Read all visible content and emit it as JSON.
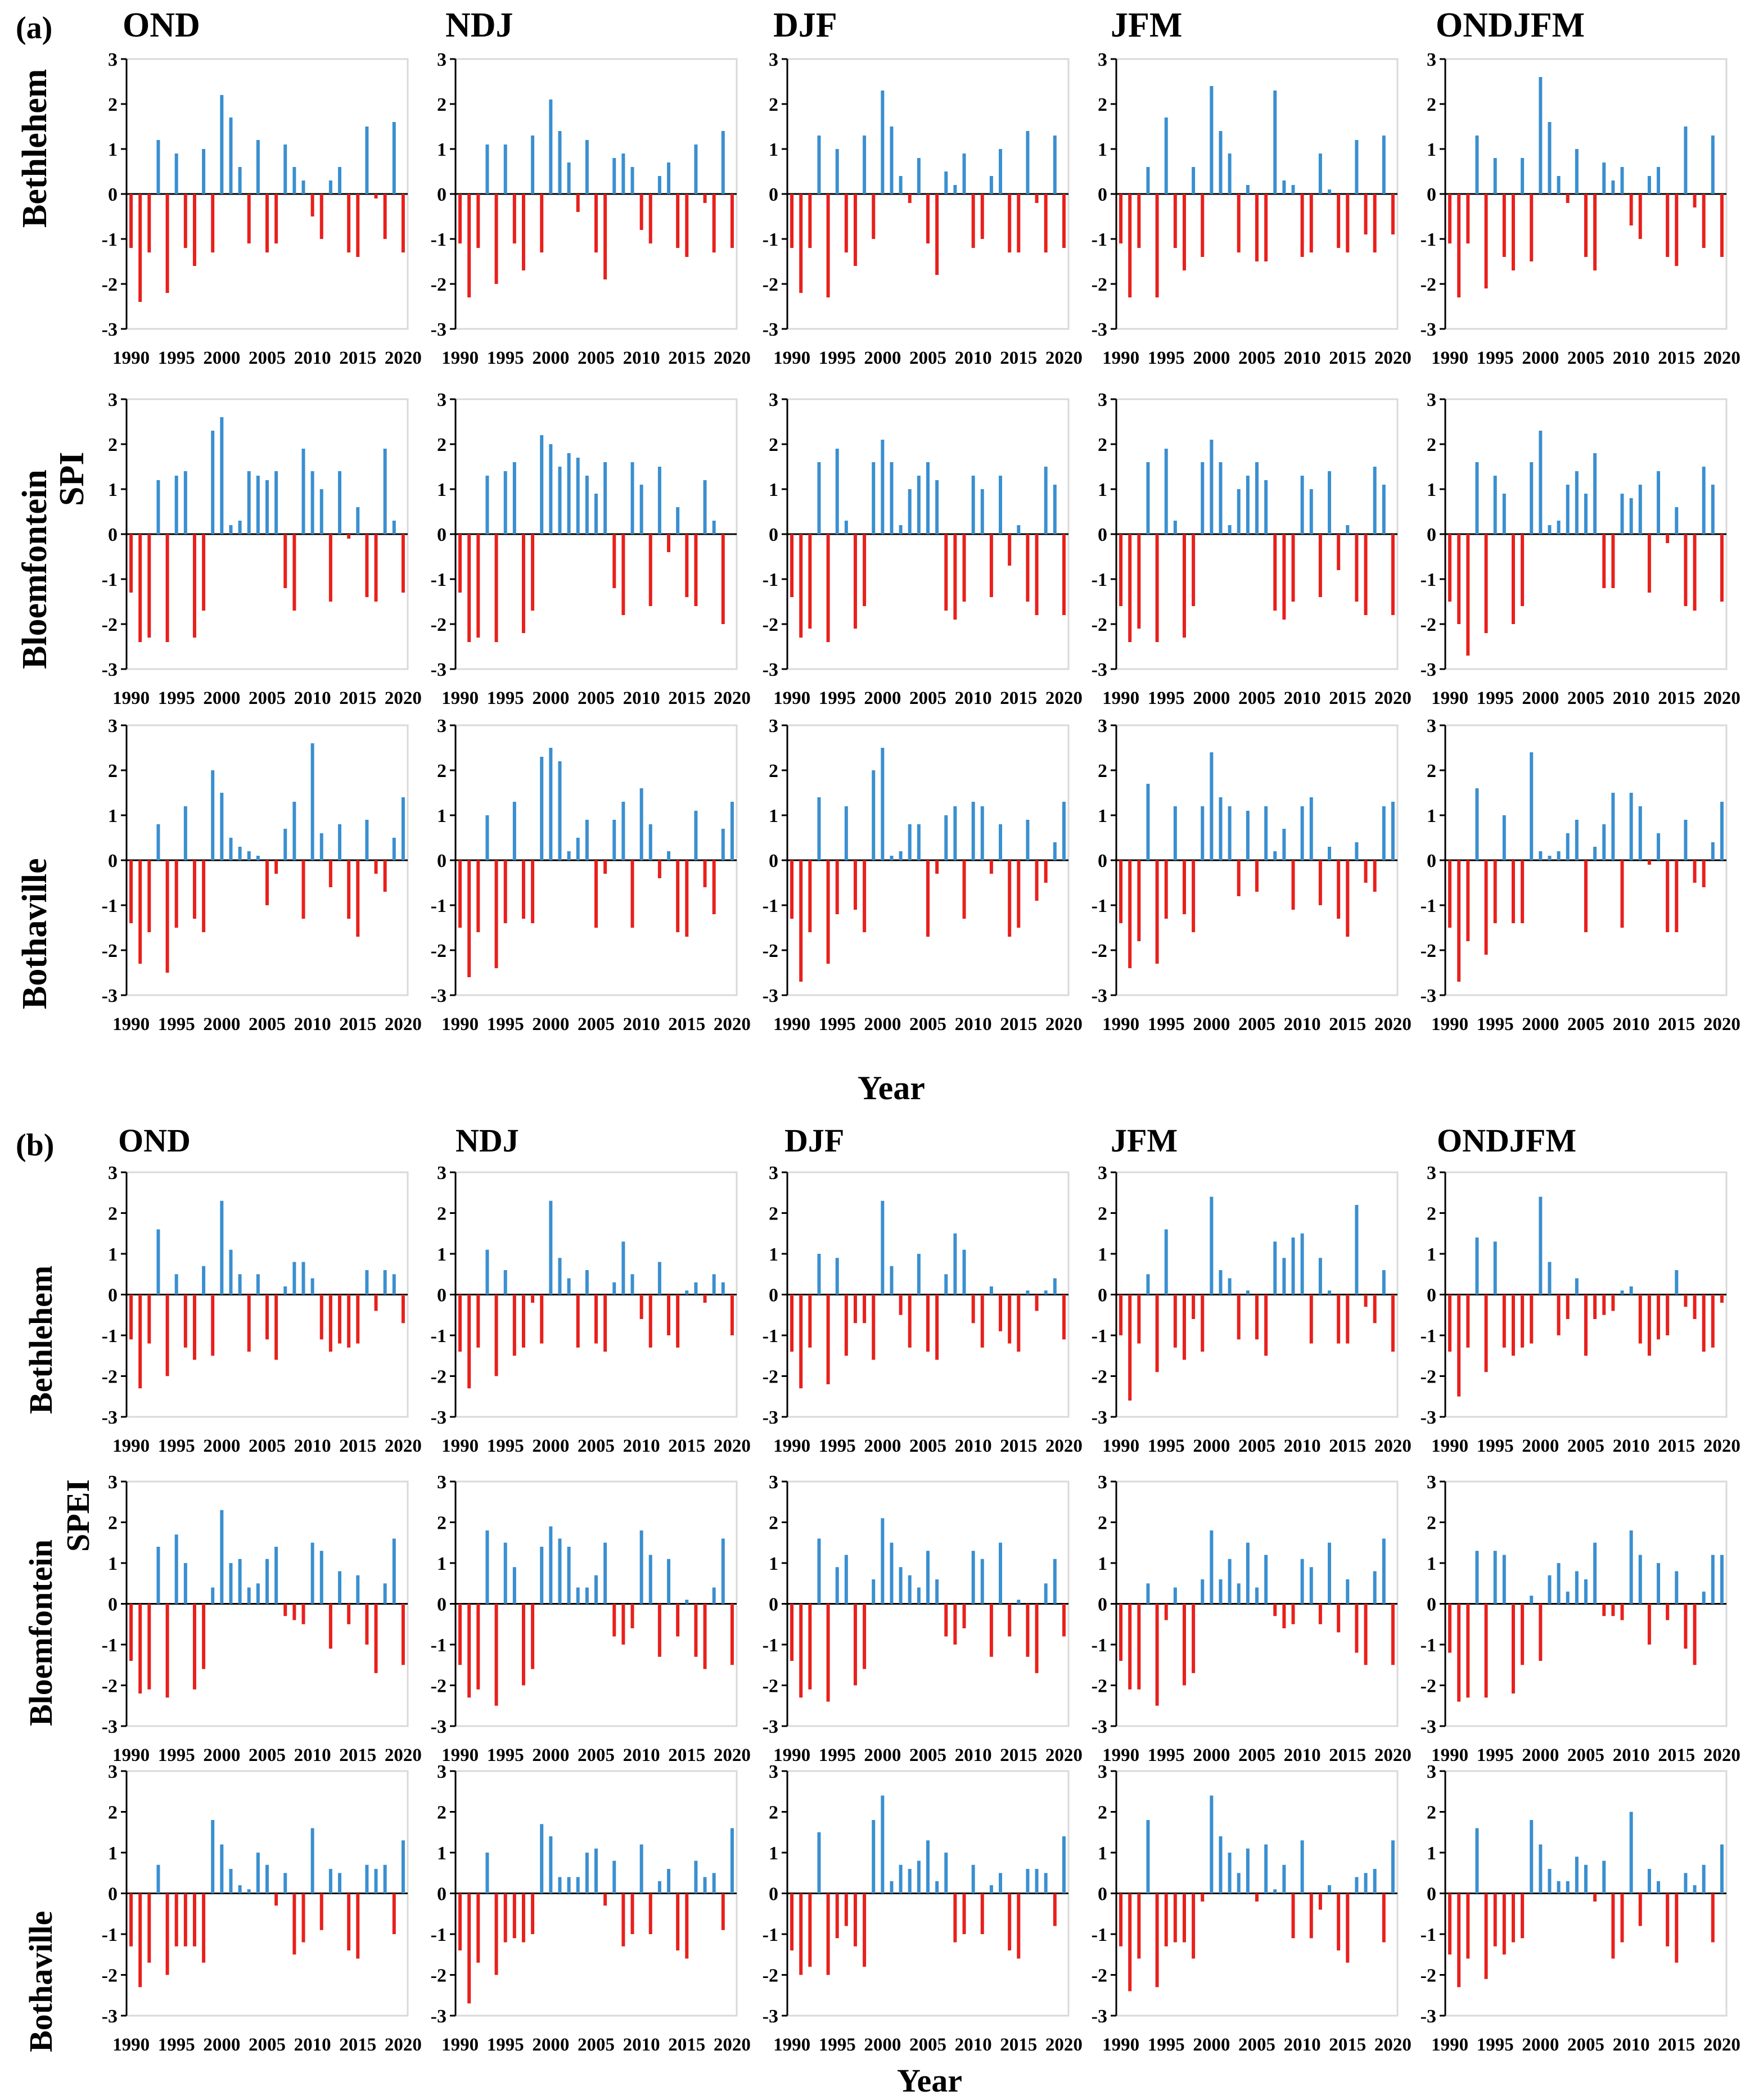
{
  "figure": {
    "panels": [
      {
        "label": "(a)",
        "index_label": "SPI",
        "x_title": "Year",
        "seasons": [
          "OND",
          "NDJ",
          "DJF",
          "JFM",
          "ONDJFM"
        ],
        "stations": [
          "Bethlehem",
          "Bloemfontein",
          "Bothaville"
        ]
      },
      {
        "label": "(b)",
        "index_label": "SPEI",
        "x_title": "Year",
        "seasons": [
          "OND",
          "NDJ",
          "DJF",
          "JFM",
          "ONDJFM"
        ],
        "stations": [
          "Bethlehem",
          "Bloemfontein",
          "Bothaville"
        ]
      }
    ],
    "colors": {
      "positive": "#3a8fd0",
      "negative": "#e8201c",
      "axis": "#000000",
      "grid": "#d9d9d9"
    }
  },
  "chart_data": {
    "type": "bar",
    "years": [
      1990,
      1991,
      1992,
      1993,
      1994,
      1995,
      1996,
      1997,
      1998,
      1999,
      2000,
      2001,
      2002,
      2003,
      2004,
      2005,
      2006,
      2007,
      2008,
      2009,
      2010,
      2011,
      2012,
      2013,
      2014,
      2015,
      2016,
      2017,
      2018,
      2019,
      2020
    ],
    "x_ticks": [
      "1990",
      "1995",
      "2000",
      "2005",
      "2010",
      "2015",
      "2020"
    ],
    "y_ticks": [
      "3",
      "2",
      "1",
      "0",
      "-1",
      "-2",
      "-3"
    ],
    "ylim": [
      -3,
      3
    ],
    "xlabel": "Year",
    "SPI": {
      "Bethlehem": {
        "OND": [
          -1.2,
          -2.4,
          -1.3,
          1.2,
          -2.2,
          0.9,
          -1.2,
          -1.6,
          1.0,
          -1.3,
          2.2,
          1.7,
          0.6,
          -1.1,
          1.2,
          -1.3,
          -1.1,
          1.1,
          0.6,
          0.3,
          -0.5,
          -1.0,
          0.3,
          0.6,
          -1.3,
          -1.4,
          1.5,
          -0.1,
          -1.0,
          1.6,
          -1.3
        ],
        "NDJ": [
          -1.1,
          -2.3,
          -1.2,
          1.1,
          -2.0,
          1.1,
          -1.1,
          -1.7,
          1.3,
          -1.3,
          2.1,
          1.4,
          0.7,
          -0.4,
          1.2,
          -1.3,
          -1.9,
          0.8,
          0.9,
          0.6,
          -0.8,
          -1.1,
          0.4,
          0.7,
          -1.2,
          -1.4,
          1.1,
          -0.2,
          -1.3,
          1.4,
          -1.2
        ],
        "DJF": [
          -1.2,
          -2.2,
          -1.2,
          1.3,
          -2.3,
          1.0,
          -1.3,
          -1.6,
          1.3,
          -1.0,
          2.3,
          1.5,
          0.4,
          -0.2,
          0.8,
          -1.1,
          -1.8,
          0.5,
          0.2,
          0.9,
          -1.2,
          -1.0,
          0.4,
          1.0,
          -1.3,
          -1.3,
          1.4,
          -0.2,
          -1.3,
          1.3,
          -1.2
        ],
        "JFM": [
          -1.1,
          -2.3,
          -1.2,
          0.6,
          -2.3,
          1.7,
          -1.2,
          -1.7,
          0.6,
          -1.4,
          2.4,
          1.4,
          0.9,
          -1.3,
          0.2,
          -1.5,
          -1.5,
          2.3,
          0.3,
          0.2,
          -1.4,
          -1.3,
          0.9,
          0.1,
          -1.2,
          -1.3,
          1.2,
          -0.9,
          -1.3,
          1.3,
          -0.9
        ],
        "ONDJFM": [
          -1.1,
          -2.3,
          -1.1,
          1.3,
          -2.1,
          0.8,
          -1.4,
          -1.7,
          0.8,
          -1.5,
          2.6,
          1.6,
          0.4,
          -0.2,
          1.0,
          -1.4,
          -1.7,
          0.7,
          0.3,
          0.6,
          -0.7,
          -1.0,
          0.4,
          0.6,
          -1.4,
          -1.6,
          1.5,
          -0.3,
          -1.2,
          1.3,
          -1.4
        ]
      },
      "Bloemfontein": {
        "OND": [
          -1.3,
          -2.4,
          -2.3,
          1.2,
          -2.4,
          1.3,
          1.4,
          -2.3,
          -1.7,
          2.3,
          2.6,
          0.2,
          0.3,
          1.4,
          1.3,
          1.2,
          1.4,
          -1.2,
          -1.7,
          1.9,
          1.4,
          1.0,
          -1.5,
          1.4,
          -0.1,
          0.6,
          -1.4,
          -1.5,
          1.9,
          0.3,
          -1.3
        ],
        "NDJ": [
          -1.3,
          -2.4,
          -2.3,
          1.3,
          -2.4,
          1.4,
          1.6,
          -2.2,
          -1.7,
          2.2,
          2.0,
          1.5,
          1.8,
          1.7,
          1.3,
          0.9,
          1.6,
          -1.2,
          -1.8,
          1.6,
          1.1,
          -1.6,
          1.5,
          -0.4,
          0.6,
          -1.4,
          -1.6,
          1.2,
          0.3,
          -2.0,
          0.0
        ],
        "DJF": [
          -1.4,
          -2.3,
          -2.1,
          1.6,
          -2.4,
          1.9,
          0.3,
          -2.1,
          -1.6,
          1.6,
          2.1,
          1.6,
          0.2,
          1.0,
          1.3,
          1.6,
          1.2,
          -1.7,
          -1.9,
          -1.5,
          1.3,
          1.0,
          -1.4,
          1.3,
          -0.7,
          0.2,
          -1.5,
          -1.8,
          1.5,
          1.1,
          -1.8
        ],
        "JFM": [
          -1.6,
          -2.4,
          -2.1,
          1.6,
          -2.4,
          1.9,
          0.3,
          -2.3,
          -1.6,
          1.6,
          2.1,
          1.6,
          0.2,
          1.0,
          1.3,
          1.6,
          1.2,
          -1.7,
          -1.9,
          -1.5,
          1.3,
          1.0,
          -1.4,
          1.4,
          -0.8,
          0.2,
          -1.5,
          -1.8,
          1.5,
          1.1,
          -1.8
        ],
        "ONDJFM": [
          -1.5,
          -2.0,
          -2.7,
          1.6,
          -2.2,
          1.3,
          0.9,
          -2.0,
          -1.6,
          1.6,
          2.3,
          0.2,
          0.3,
          1.1,
          1.4,
          0.9,
          1.8,
          -1.2,
          -1.2,
          0.9,
          0.8,
          1.1,
          -1.3,
          1.4,
          -0.2,
          0.6,
          -1.6,
          -1.7,
          1.5,
          1.1,
          -1.5
        ]
      },
      "Bothaville": {
        "OND": [
          -1.4,
          -2.3,
          -1.6,
          0.8,
          -2.5,
          -1.5,
          1.2,
          -1.3,
          -1.6,
          2.0,
          1.5,
          0.5,
          0.3,
          0.2,
          0.1,
          -1.0,
          -0.3,
          0.7,
          1.3,
          -1.3,
          2.6,
          0.6,
          -0.6,
          0.8,
          -1.3,
          -1.7,
          0.9,
          -0.3,
          -0.7,
          0.5,
          1.4
        ],
        "NDJ": [
          -1.5,
          -2.6,
          -1.6,
          1.0,
          -2.4,
          -1.4,
          1.3,
          -1.3,
          -1.4,
          2.3,
          2.5,
          2.2,
          0.2,
          0.5,
          0.9,
          -1.5,
          -0.3,
          0.9,
          1.3,
          -1.5,
          1.6,
          0.8,
          -0.4,
          0.2,
          -1.6,
          -1.7,
          1.1,
          -0.6,
          -1.2,
          0.7,
          1.3
        ],
        "DJF": [
          -1.3,
          -2.7,
          -1.6,
          1.4,
          -2.3,
          -1.2,
          1.2,
          -1.1,
          -1.6,
          2.0,
          2.5,
          0.1,
          0.2,
          0.8,
          0.8,
          -1.7,
          -0.3,
          1.0,
          1.2,
          -1.3,
          1.3,
          1.2,
          -0.3,
          0.8,
          -1.7,
          -1.5,
          0.9,
          -0.9,
          -0.5,
          0.4,
          1.3
        ],
        "JFM": [
          -1.4,
          -2.4,
          -1.8,
          1.7,
          -2.3,
          -1.3,
          1.2,
          -1.2,
          -1.6,
          1.2,
          2.4,
          1.4,
          1.2,
          -0.8,
          1.1,
          -0.7,
          1.2,
          0.2,
          0.7,
          -1.1,
          1.2,
          1.4,
          -1.0,
          0.3,
          -1.3,
          -1.7,
          0.4,
          -0.5,
          -0.7,
          1.2,
          1.3
        ],
        "ONDJFM": [
          -1.5,
          -2.7,
          -1.8,
          1.6,
          -2.1,
          -1.4,
          1.0,
          -1.4,
          -1.4,
          2.4,
          0.2,
          0.1,
          0.2,
          0.6,
          0.9,
          -1.6,
          0.3,
          0.8,
          1.5,
          -1.5,
          1.5,
          1.2,
          -0.1,
          0.6,
          -1.6,
          -1.6,
          0.9,
          -0.5,
          -0.6,
          0.4,
          1.3
        ]
      }
    },
    "SPEI": {
      "Bethlehem": {
        "OND": [
          -1.1,
          -2.3,
          -1.2,
          1.6,
          -2.0,
          0.5,
          -1.3,
          -1.6,
          0.7,
          -1.5,
          2.3,
          1.1,
          0.5,
          -1.4,
          0.5,
          -1.1,
          -1.6,
          0.2,
          0.8,
          0.8,
          0.4,
          -1.1,
          -1.4,
          -1.2,
          -1.3,
          -1.2,
          0.6,
          -0.4,
          0.6,
          0.5,
          -0.7
        ],
        "NDJ": [
          -1.4,
          -2.3,
          -1.3,
          1.1,
          -2.0,
          0.6,
          -1.5,
          -1.3,
          -0.2,
          -1.2,
          2.3,
          0.9,
          0.4,
          -1.3,
          0.6,
          -1.2,
          -1.4,
          0.3,
          1.3,
          0.5,
          -0.6,
          -1.3,
          0.8,
          -1.0,
          -1.3,
          0.1,
          0.3,
          -0.2,
          0.5,
          0.3,
          -1.0
        ],
        "DJF": [
          -1.4,
          -2.3,
          -1.3,
          1.0,
          -2.2,
          0.9,
          -1.5,
          -0.7,
          -0.7,
          -1.6,
          2.3,
          0.7,
          -0.5,
          -1.3,
          1.0,
          -1.4,
          -1.6,
          0.5,
          1.5,
          1.1,
          -0.7,
          -1.3,
          0.2,
          -0.9,
          -1.2,
          -1.4,
          0.1,
          -0.4,
          0.1,
          0.4,
          -1.1
        ],
        "JFM": [
          -1.0,
          -2.6,
          -1.2,
          0.5,
          -1.9,
          1.6,
          -1.3,
          -1.6,
          -0.6,
          -1.4,
          2.4,
          0.6,
          0.4,
          -1.1,
          0.1,
          -1.1,
          -1.5,
          1.3,
          0.9,
          1.4,
          1.5,
          -1.2,
          0.9,
          0.1,
          -1.2,
          -1.2,
          2.2,
          -0.3,
          -0.7,
          0.6,
          -1.4
        ],
        "ONDJFM": [
          -1.4,
          -2.5,
          -1.3,
          1.4,
          -1.9,
          1.3,
          -1.3,
          -1.5,
          -1.3,
          -1.2,
          2.4,
          0.8,
          -1.0,
          -0.6,
          0.4,
          -1.5,
          -0.6,
          -0.5,
          -0.4,
          0.1,
          0.2,
          -1.2,
          -1.5,
          -1.1,
          -1.0,
          0.6,
          -0.3,
          -0.6,
          -1.4,
          -1.3,
          -0.2
        ]
      },
      "Bloemfontein": {
        "OND": [
          -1.4,
          -2.2,
          -2.1,
          1.4,
          -2.3,
          1.7,
          1.0,
          -2.1,
          -1.6,
          0.4,
          2.3,
          1.0,
          1.1,
          0.4,
          0.5,
          1.1,
          1.4,
          -0.3,
          -0.4,
          -0.5,
          1.5,
          1.3,
          -1.1,
          0.8,
          -0.5,
          0.7,
          -1.0,
          -1.7,
          0.5,
          1.6,
          -1.5
        ],
        "NDJ": [
          -1.5,
          -2.3,
          -2.1,
          1.8,
          -2.5,
          1.5,
          0.9,
          -2.0,
          -1.6,
          1.4,
          1.9,
          1.6,
          1.4,
          0.4,
          0.4,
          0.7,
          1.5,
          -0.8,
          -1.0,
          -0.6,
          1.8,
          1.2,
          -1.3,
          1.1,
          -0.8,
          0.1,
          -1.3,
          -1.6,
          0.4,
          1.6,
          -1.5
        ],
        "DJF": [
          -1.4,
          -2.3,
          -2.1,
          1.6,
          -2.4,
          0.9,
          1.2,
          -2.0,
          -1.6,
          0.6,
          2.1,
          1.5,
          0.9,
          0.7,
          0.4,
          1.3,
          0.6,
          -0.8,
          -1.0,
          -0.6,
          1.3,
          1.1,
          -1.3,
          1.5,
          -0.8,
          0.1,
          -1.3,
          -1.7,
          0.5,
          1.1,
          -0.8
        ],
        "JFM": [
          -1.4,
          -2.1,
          -2.1,
          0.5,
          -2.5,
          -0.4,
          0.4,
          -2.0,
          -1.7,
          0.6,
          1.8,
          0.6,
          1.1,
          0.5,
          1.5,
          0.4,
          1.2,
          -0.3,
          -0.6,
          -0.5,
          1.1,
          0.9,
          -0.5,
          1.5,
          -0.7,
          0.6,
          -1.2,
          -1.5,
          0.8,
          1.6,
          -1.5
        ],
        "ONDJFM": [
          -1.2,
          -2.4,
          -2.3,
          1.3,
          -2.3,
          1.3,
          1.2,
          -2.2,
          -1.5,
          0.2,
          -1.4,
          0.7,
          1.0,
          0.3,
          0.8,
          0.6,
          1.5,
          -0.3,
          -0.3,
          -0.4,
          1.8,
          1.2,
          -1.0,
          1.0,
          -0.4,
          0.8,
          -1.1,
          -1.5,
          0.3,
          1.2,
          1.2
        ]
      },
      "Bothaville": {
        "OND": [
          -1.3,
          -2.3,
          -1.7,
          0.7,
          -2.0,
          -1.3,
          -1.3,
          -1.3,
          -1.7,
          1.8,
          1.2,
          0.6,
          0.2,
          0.1,
          1.0,
          0.7,
          -0.3,
          0.5,
          -1.5,
          -1.2,
          1.6,
          -0.9,
          0.6,
          0.5,
          -1.4,
          -1.6,
          0.7,
          0.6,
          0.7,
          -1.0,
          1.3
        ],
        "NDJ": [
          -1.4,
          -2.7,
          -1.7,
          1.0,
          -2.0,
          -1.2,
          -1.1,
          -1.2,
          -1.0,
          1.7,
          1.4,
          0.4,
          0.4,
          0.4,
          1.0,
          1.1,
          -0.3,
          0.8,
          -1.3,
          -1.0,
          1.2,
          -1.0,
          0.3,
          0.6,
          -1.4,
          -1.6,
          0.8,
          0.4,
          0.5,
          -0.9,
          1.6
        ],
        "DJF": [
          -1.4,
          -2.0,
          -1.8,
          1.5,
          -2.0,
          -1.1,
          -0.8,
          -1.3,
          -1.8,
          1.8,
          2.4,
          0.3,
          0.7,
          0.6,
          0.8,
          1.3,
          0.3,
          1.0,
          -1.2,
          -1.0,
          0.7,
          -1.0,
          0.2,
          0.5,
          -1.4,
          -1.6,
          0.6,
          0.6,
          0.5,
          -0.8,
          1.4
        ],
        "JFM": [
          -1.3,
          -2.4,
          -1.6,
          1.8,
          -2.3,
          -1.3,
          -1.2,
          -1.2,
          -1.6,
          -0.2,
          2.4,
          1.4,
          1.0,
          0.5,
          1.1,
          -0.2,
          1.2,
          0.1,
          0.7,
          -1.1,
          1.3,
          -1.1,
          -0.4,
          0.2,
          -1.4,
          -1.7,
          0.4,
          0.5,
          0.6,
          -1.2,
          1.3
        ],
        "ONDJFM": [
          -1.5,
          -2.3,
          -1.6,
          1.6,
          -2.1,
          -1.3,
          -1.5,
          -1.2,
          -1.1,
          1.8,
          1.2,
          0.6,
          0.3,
          0.3,
          0.9,
          0.7,
          -0.2,
          0.8,
          -1.6,
          -1.2,
          2.0,
          -0.8,
          0.6,
          0.3,
          -1.3,
          -1.7,
          0.5,
          0.2,
          0.7,
          -1.2,
          1.2
        ]
      }
    }
  }
}
